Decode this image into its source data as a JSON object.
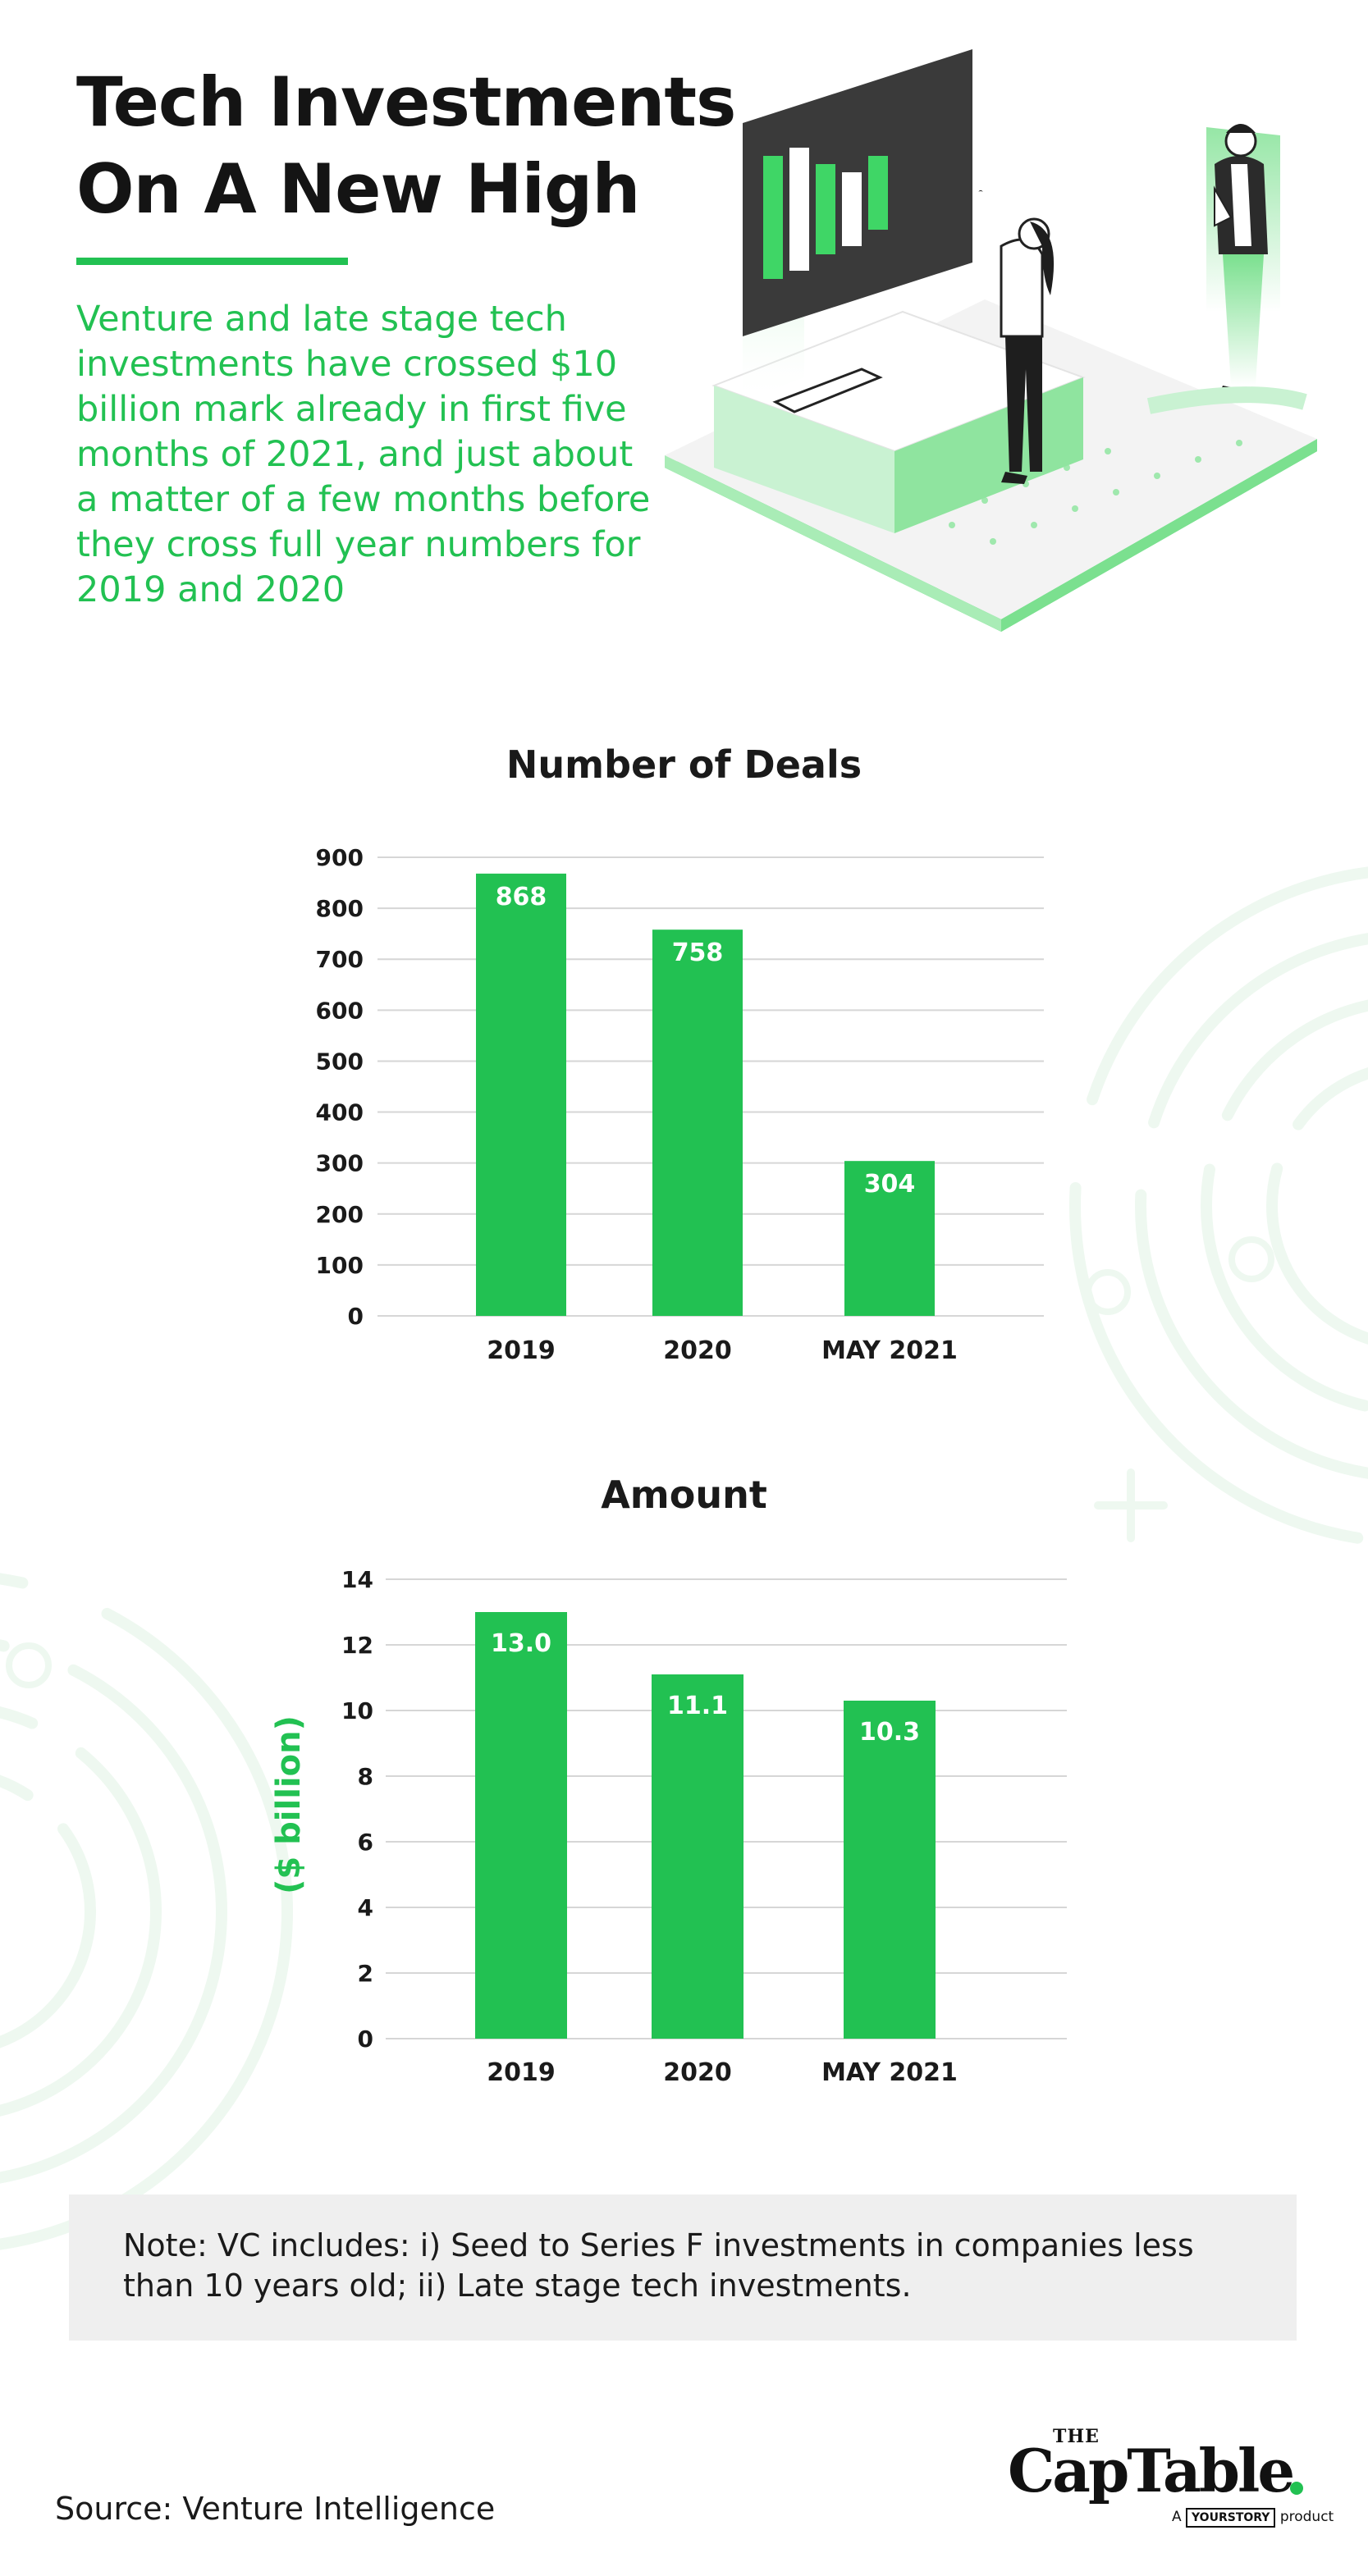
{
  "header": {
    "title_line1": "Tech Investments",
    "title_line2": "On A New High",
    "intro": "Venture and late stage tech investments have crossed $10 billion mark already in first five months of 2021, and just about a matter of a few months before they cross full year numbers for 2019 and 2020"
  },
  "illustration": {
    "icon": "analytics-presentation-illustration"
  },
  "colors": {
    "accent": "#22c152",
    "text": "#1a1a1a",
    "note_bg": "#efefef",
    "grid": "#d6d6d6"
  },
  "chart_data": [
    {
      "type": "bar",
      "title": "Number of Deals",
      "categories": [
        "2019",
        "2020",
        "MAY 2021"
      ],
      "values": [
        868,
        758,
        304
      ],
      "value_labels": [
        "868",
        "758",
        "304"
      ],
      "ylim": [
        0,
        900
      ],
      "y_ticks": [
        0,
        100,
        200,
        300,
        400,
        500,
        600,
        700,
        800,
        900
      ],
      "xlabel": "",
      "ylabel": "",
      "grid": true,
      "legend": "none",
      "bar_color": "#22c152"
    },
    {
      "type": "bar",
      "title": "Amount",
      "categories": [
        "2019",
        "2020",
        "MAY 2021"
      ],
      "values": [
        13.0,
        11.1,
        10.3
      ],
      "value_labels": [
        "13.0",
        "11.1",
        "10.3"
      ],
      "ylim": [
        0,
        14
      ],
      "y_ticks": [
        0,
        2,
        4,
        6,
        8,
        10,
        12,
        14
      ],
      "xlabel": "",
      "ylabel": "($ billion)",
      "grid": true,
      "legend": "none",
      "bar_color": "#22c152"
    }
  ],
  "note": {
    "text": "Note: VC includes: i) Seed to Series F investments in companies less than 10 years old; ii) Late stage tech investments."
  },
  "footer": {
    "source": "Source: Venture Intelligence",
    "logo_the": "THE",
    "logo_name": "CapTable",
    "logo_byline_a": "A",
    "logo_byline_brand": "YOURSTORY",
    "logo_byline_product": "product"
  }
}
